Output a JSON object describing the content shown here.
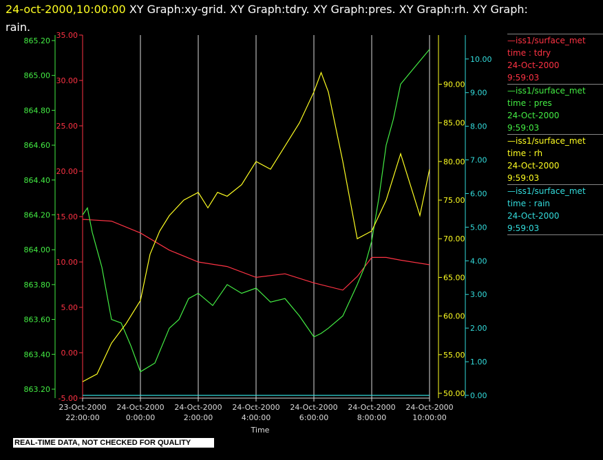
{
  "header": {
    "timestamp": "24-oct-2000,10:00:00",
    "rest_line1": " XY Graph:xy-grid.  XY Graph:tdry.  XY Graph:pres.  XY Graph:rh.  XY Graph:",
    "line2": "rain."
  },
  "colors": {
    "tdry": "#ff3344",
    "pres": "#44ee44",
    "rh": "#ffff22",
    "rain": "#33dddd",
    "grid": "#dddddd",
    "timestamp": "#ffff22"
  },
  "legend": [
    {
      "name": "—iss1/surface_met",
      "var": "time : tdry",
      "date": "24-Oct-2000",
      "time": "9:59:03",
      "color": "#ff3344"
    },
    {
      "name": "—iss1/surface_met",
      "var": "time : pres",
      "date": "24-Oct-2000",
      "time": "9:59:03",
      "color": "#44ee44"
    },
    {
      "name": "—iss1/surface_met",
      "var": "time : rh",
      "date": "24-Oct-2000",
      "time": "9:59:03",
      "color": "#ffff22"
    },
    {
      "name": "—iss1/surface_met",
      "var": "time : rain",
      "date": "24-Oct-2000",
      "time": "9:59:03",
      "color": "#33dddd"
    }
  ],
  "footer": {
    "qc_notice": "REAL-TIME DATA, NOT CHECKED FOR QUALITY"
  },
  "chart_data": {
    "type": "line",
    "xlabel": "Time",
    "x_ticks": [
      {
        "t": "2000-10-23T22:00",
        "l1": "23-Oct-2000",
        "l2": "22:00:00"
      },
      {
        "t": "2000-10-24T00:00",
        "l1": "24-Oct-2000",
        "l2": "0:00:00"
      },
      {
        "t": "2000-10-24T02:00",
        "l1": "24-Oct-2000",
        "l2": "2:00:00"
      },
      {
        "t": "2000-10-24T04:00",
        "l1": "24-Oct-2000",
        "l2": "4:00:00"
      },
      {
        "t": "2000-10-24T06:00",
        "l1": "24-Oct-2000",
        "l2": "6:00:00"
      },
      {
        "t": "2000-10-24T08:00",
        "l1": "24-Oct-2000",
        "l2": "8:00:00"
      },
      {
        "t": "2000-10-24T10:00",
        "l1": "24-Oct-2000",
        "l2": "10:00:00"
      }
    ],
    "xlim": [
      "2000-10-23T22:00",
      "2000-10-24T10:00"
    ],
    "grid": "vertical",
    "axes": {
      "pres": {
        "ylim": [
          863.2,
          865.2
        ],
        "ticks": [
          "863.20",
          "863.40",
          "863.60",
          "863.80",
          "864.00",
          "864.20",
          "864.40",
          "864.60",
          "864.80",
          "865.00",
          "865.20"
        ]
      },
      "tdry": {
        "ylim": [
          -5,
          35
        ],
        "ticks": [
          "-5.00",
          "0.00",
          "5.00",
          "10.00",
          "15.00",
          "20.00",
          "25.00",
          "30.00",
          "35.00"
        ]
      },
      "rh": {
        "ylim": [
          50,
          92
        ],
        "ticks": [
          "50.00",
          "55.00",
          "60.00",
          "65.00",
          "70.00",
          "75.00",
          "80.00",
          "85.00",
          "90.00"
        ]
      },
      "rain": {
        "ylim": [
          0,
          10.2
        ],
        "ticks": [
          "0.00",
          "1.00",
          "2.00",
          "3.00",
          "4.00",
          "5.00",
          "6.00",
          "7.00",
          "8.00",
          "9.00",
          "10.00"
        ]
      }
    },
    "series": [
      {
        "key": "tdry",
        "x": [
          "2000-10-23T22:00",
          "2000-10-23T23:00",
          "2000-10-24T00:00",
          "2000-10-24T01:00",
          "2000-10-24T02:00",
          "2000-10-24T03:00",
          "2000-10-24T04:00",
          "2000-10-24T05:00",
          "2000-10-24T06:00",
          "2000-10-24T07:00",
          "2000-10-24T07:30",
          "2000-10-24T08:00",
          "2000-10-24T08:30",
          "2000-10-24T09:00",
          "2000-10-24T10:00"
        ],
        "y": [
          14.7,
          14.5,
          13.2,
          11.3,
          10.0,
          9.5,
          8.3,
          8.7,
          7.7,
          6.9,
          8.4,
          10.5,
          10.5,
          10.2,
          9.7
        ]
      },
      {
        "key": "pres",
        "x": [
          "2000-10-23T22:00",
          "2000-10-23T22:10",
          "2000-10-23T22:20",
          "2000-10-23T22:40",
          "2000-10-23T23:00",
          "2000-10-23T23:20",
          "2000-10-23T23:40",
          "2000-10-24T00:00",
          "2000-10-24T00:30",
          "2000-10-24T01:00",
          "2000-10-24T01:20",
          "2000-10-24T01:40",
          "2000-10-24T02:00",
          "2000-10-24T02:30",
          "2000-10-24T03:00",
          "2000-10-24T03:30",
          "2000-10-24T04:00",
          "2000-10-24T04:30",
          "2000-10-24T05:00",
          "2000-10-24T05:30",
          "2000-10-24T06:00",
          "2000-10-24T06:15",
          "2000-10-24T06:30",
          "2000-10-24T07:00",
          "2000-10-24T07:30",
          "2000-10-24T07:45",
          "2000-10-24T08:00",
          "2000-10-24T08:15",
          "2000-10-24T08:30",
          "2000-10-24T08:45",
          "2000-10-24T09:00",
          "2000-10-24T09:30",
          "2000-10-24T10:00"
        ],
        "y": [
          864.2,
          864.24,
          864.1,
          863.9,
          863.6,
          863.58,
          863.45,
          863.3,
          863.35,
          863.55,
          863.6,
          863.72,
          863.75,
          863.68,
          863.8,
          863.75,
          863.78,
          863.7,
          863.72,
          863.62,
          863.5,
          863.52,
          863.55,
          863.62,
          863.8,
          863.9,
          864.05,
          864.3,
          864.6,
          864.75,
          864.95,
          865.05,
          865.15
        ]
      },
      {
        "key": "rh",
        "x": [
          "2000-10-23T22:00",
          "2000-10-23T22:30",
          "2000-10-23T23:00",
          "2000-10-23T23:30",
          "2000-10-24T00:00",
          "2000-10-24T00:20",
          "2000-10-24T00:40",
          "2000-10-24T01:00",
          "2000-10-24T01:30",
          "2000-10-24T02:00",
          "2000-10-24T02:20",
          "2000-10-24T02:40",
          "2000-10-24T03:00",
          "2000-10-24T03:30",
          "2000-10-24T04:00",
          "2000-10-24T04:30",
          "2000-10-24T05:00",
          "2000-10-24T05:30",
          "2000-10-24T06:00",
          "2000-10-24T06:15",
          "2000-10-24T06:30",
          "2000-10-24T07:00",
          "2000-10-24T07:30",
          "2000-10-24T08:00",
          "2000-10-24T08:30",
          "2000-10-24T09:00",
          "2000-10-24T09:20",
          "2000-10-24T09:40",
          "2000-10-24T10:00"
        ],
        "y": [
          51.5,
          52.5,
          56.5,
          59.0,
          62.0,
          68.0,
          71.0,
          73.0,
          75.0,
          76.0,
          74.0,
          76.0,
          75.5,
          77.0,
          80.0,
          79.0,
          82.0,
          85.0,
          89.0,
          91.5,
          89.0,
          80.0,
          70.0,
          71.0,
          75.0,
          81.0,
          77.0,
          73.0,
          79.0
        ]
      },
      {
        "key": "rain",
        "x": [
          "2000-10-23T22:00",
          "2000-10-24T10:00"
        ],
        "y": [
          0.0,
          0.0
        ]
      }
    ]
  }
}
